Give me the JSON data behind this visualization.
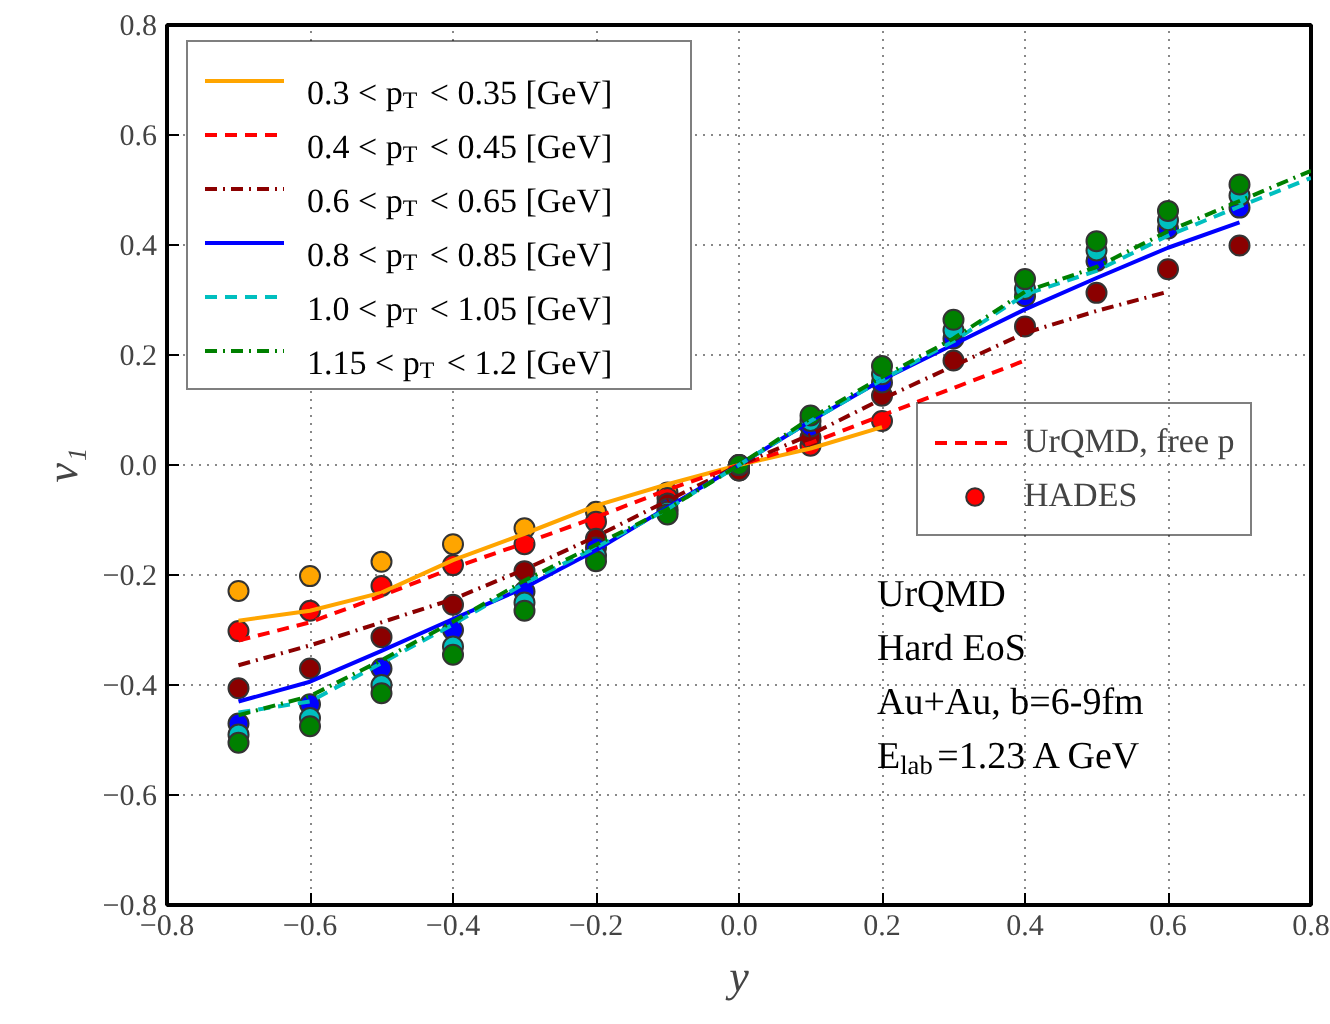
{
  "chart_data": {
    "type": "line",
    "xlabel": "y",
    "ylabel": "v₁",
    "xlim": [
      -0.8,
      0.8
    ],
    "ylim": [
      -0.8,
      0.8
    ],
    "xticks": [
      {
        "value": -0.8,
        "label": "−0.8"
      },
      {
        "value": -0.6,
        "label": "−0.6"
      },
      {
        "value": -0.4,
        "label": "−0.4"
      },
      {
        "value": -0.2,
        "label": "−0.2"
      },
      {
        "value": 0,
        "label": "0.0"
      },
      {
        "value": 0.2,
        "label": "0.2"
      },
      {
        "value": 0.4,
        "label": "0.4"
      },
      {
        "value": 0.6,
        "label": "0.6"
      },
      {
        "value": 0.8,
        "label": "0.8"
      }
    ],
    "yticks": [
      {
        "value": -0.8,
        "label": "−0.8"
      },
      {
        "value": -0.6,
        "label": "−0.6"
      },
      {
        "value": -0.4,
        "label": "−0.4"
      },
      {
        "value": -0.2,
        "label": "−0.2"
      },
      {
        "value": 0,
        "label": "0.0"
      },
      {
        "value": 0.2,
        "label": "0.2"
      },
      {
        "value": 0.4,
        "label": "0.4"
      },
      {
        "value": 0.6,
        "label": "0.6"
      },
      {
        "value": 0.8,
        "label": "0.8"
      }
    ],
    "grid": true,
    "legend": "top left",
    "series": [
      {
        "name": "0.3 < p$_{T}$ < 0.35 [GeV]",
        "color": "#ffa500",
        "line_style": "solid",
        "marker": "none",
        "x": [
          -0.7,
          -0.6,
          -0.5,
          -0.4,
          -0.3,
          -0.2,
          -0.1,
          0,
          0.1,
          0.2
        ],
        "values": [
          -0.283,
          -0.265,
          -0.232,
          -0.173,
          -0.125,
          -0.074,
          -0.035,
          0,
          0.03,
          0.069
        ]
      },
      {
        "name": "0.4 < p$_{T}$ < 0.45 [GeV]",
        "color": "#ff0000",
        "line_style": "dashed",
        "marker": "none",
        "x": [
          -0.7,
          -0.6,
          -0.5,
          -0.4,
          -0.3,
          -0.2,
          -0.1,
          0,
          0.1,
          0.2,
          0.3,
          0.4
        ],
        "values": [
          -0.319,
          -0.286,
          -0.238,
          -0.187,
          -0.142,
          -0.095,
          -0.045,
          0,
          0.04,
          0.09,
          0.14,
          0.19
        ]
      },
      {
        "name": "0.6 < p$_{T}$ < 0.65 [GeV]",
        "color": "#8b0000",
        "line_style": "dotted",
        "marker": "none",
        "x": [
          -0.7,
          -0.6,
          -0.5,
          -0.4,
          -0.3,
          -0.2,
          -0.1,
          0,
          0.1,
          0.2,
          0.3,
          0.4,
          0.5,
          0.6
        ],
        "values": [
          -0.364,
          -0.328,
          -0.286,
          -0.244,
          -0.19,
          -0.13,
          -0.065,
          0,
          0.055,
          0.12,
          0.18,
          0.24,
          0.28,
          0.315
        ]
      },
      {
        "name": "0.8 < p$_{T}$ < 0.85 [GeV]",
        "color": "#0000ff",
        "line_style": "solid",
        "marker": "none",
        "x": [
          -0.7,
          -0.6,
          -0.5,
          -0.4,
          -0.3,
          -0.2,
          -0.1,
          0,
          0.1,
          0.2,
          0.3,
          0.4,
          0.5,
          0.6,
          0.7
        ],
        "values": [
          -0.43,
          -0.394,
          -0.338,
          -0.28,
          -0.223,
          -0.155,
          -0.077,
          0,
          0.08,
          0.155,
          0.219,
          0.283,
          0.34,
          0.395,
          0.441
        ]
      },
      {
        "name": "1.0 < p$_{T}$ < 1.05 [GeV]",
        "color": "#00bfbf",
        "line_style": "dashed",
        "marker": "none",
        "x": [
          -0.7,
          -0.6,
          -0.5,
          -0.4,
          -0.3,
          -0.2,
          -0.1,
          0,
          0.1,
          0.2,
          0.3,
          0.4,
          0.5,
          0.6,
          0.7,
          0.8
        ],
        "values": [
          -0.45,
          -0.43,
          -0.36,
          -0.29,
          -0.215,
          -0.15,
          -0.08,
          0,
          0.08,
          0.155,
          0.225,
          0.31,
          0.353,
          0.417,
          0.47,
          0.522
        ]
      },
      {
        "name": "1.15 < p$_{T}$ < 1.2 [GeV]",
        "color": "#008000",
        "line_style": "dotted",
        "marker": "none",
        "x": [
          -0.7,
          -0.6,
          -0.5,
          -0.4,
          -0.3,
          -0.2,
          -0.1,
          0,
          0.1,
          0.2,
          0.3,
          0.4,
          0.5,
          0.6,
          0.7,
          0.8
        ],
        "values": [
          -0.455,
          -0.42,
          -0.355,
          -0.285,
          -0.21,
          -0.145,
          -0.08,
          0,
          0.085,
          0.16,
          0.23,
          0.315,
          0.36,
          0.425,
          0.48,
          0.535
        ]
      },
      {
        "type": "scatter",
        "name": "HADES",
        "color": "#ff0000",
        "marker": "circle",
        "x": [
          -0.7,
          -0.6,
          -0.5,
          -0.4,
          -0.3,
          -0.2,
          -0.1,
          -0.7,
          -0.6,
          -0.5,
          -0.4,
          -0.3,
          -0.2,
          -0.1,
          0,
          0.1,
          0.2,
          -0.7,
          -0.6,
          -0.5,
          -0.4,
          -0.3,
          -0.2,
          -0.1,
          0,
          0.1,
          0.2,
          0.3,
          0.4,
          0.5,
          0.6,
          0.7,
          -0.7,
          -0.6,
          -0.5,
          -0.4,
          -0.3,
          -0.2,
          -0.1,
          0,
          0.1,
          0.2,
          0.3,
          0.4,
          0.5,
          0.6,
          0.7,
          -0.7,
          -0.6,
          -0.5,
          -0.4,
          -0.3,
          -0.2,
          -0.1,
          0,
          0.1,
          0.2,
          0.3,
          0.4,
          0.5,
          0.6,
          0.7,
          -0.7,
          -0.6,
          -0.5,
          -0.4,
          -0.3,
          -0.2,
          -0.1,
          0,
          0.1,
          0.2,
          0.3,
          0.4,
          0.5,
          0.6,
          0.7
        ],
        "values": [
          -0.229,
          -0.202,
          -0.176,
          -0.144,
          -0.115,
          -0.085,
          -0.05,
          -0.302,
          -0.265,
          -0.22,
          -0.182,
          -0.144,
          -0.103,
          -0.06,
          -0.01,
          0.035,
          0.08,
          -0.406,
          -0.37,
          -0.313,
          -0.254,
          -0.193,
          -0.134,
          -0.07,
          -0.01,
          0.05,
          0.126,
          0.19,
          0.252,
          0.313,
          0.356,
          0.399,
          -0.47,
          -0.435,
          -0.37,
          -0.3,
          -0.23,
          -0.15,
          -0.08,
          0,
          0.07,
          0.15,
          0.23,
          0.307,
          0.371,
          0.43,
          0.468,
          -0.49,
          -0.46,
          -0.4,
          -0.33,
          -0.25,
          -0.165,
          -0.085,
          0,
          0.08,
          0.165,
          0.245,
          0.32,
          0.39,
          0.445,
          0.49,
          -0.505,
          -0.475,
          -0.415,
          -0.345,
          -0.265,
          -0.175,
          -0.09,
          0,
          0.09,
          0.18,
          0.264,
          0.338,
          0.407,
          0.462,
          0.51
        ],
        "colors": [
          "#ffa500",
          "#ffa500",
          "#ffa500",
          "#ffa500",
          "#ffa500",
          "#ffa500",
          "#ffa500",
          "#ff0000",
          "#ff0000",
          "#ff0000",
          "#ff0000",
          "#ff0000",
          "#ff0000",
          "#ff0000",
          "#ff0000",
          "#ff0000",
          "#ff0000",
          "#8b0000",
          "#8b0000",
          "#8b0000",
          "#8b0000",
          "#8b0000",
          "#8b0000",
          "#8b0000",
          "#8b0000",
          "#8b0000",
          "#8b0000",
          "#8b0000",
          "#8b0000",
          "#8b0000",
          "#8b0000",
          "#8b0000",
          "#0000ff",
          "#0000ff",
          "#0000ff",
          "#0000ff",
          "#0000ff",
          "#0000ff",
          "#0000ff",
          "#0000ff",
          "#0000ff",
          "#0000ff",
          "#0000ff",
          "#0000ff",
          "#0000ff",
          "#0000ff",
          "#0000ff",
          "#00bfbf",
          "#00bfbf",
          "#00bfbf",
          "#00bfbf",
          "#00bfbf",
          "#00bfbf",
          "#00bfbf",
          "#00bfbf",
          "#00bfbf",
          "#00bfbf",
          "#00bfbf",
          "#00bfbf",
          "#00bfbf",
          "#00bfbf",
          "#00bfbf",
          "#008000",
          "#008000",
          "#008000",
          "#008000",
          "#008000",
          "#008000",
          "#008000",
          "#008000",
          "#008000",
          "#008000",
          "#008000",
          "#008000",
          "#008000",
          "#008000",
          "#008000"
        ]
      }
    ],
    "annotations": [
      "UrQMD, free p",
      "UrQMD",
      "Hard EoS",
      "Au+Au, b=6-9fm",
      "E$_{lab}$=1.23 A GeV"
    ]
  }
}
